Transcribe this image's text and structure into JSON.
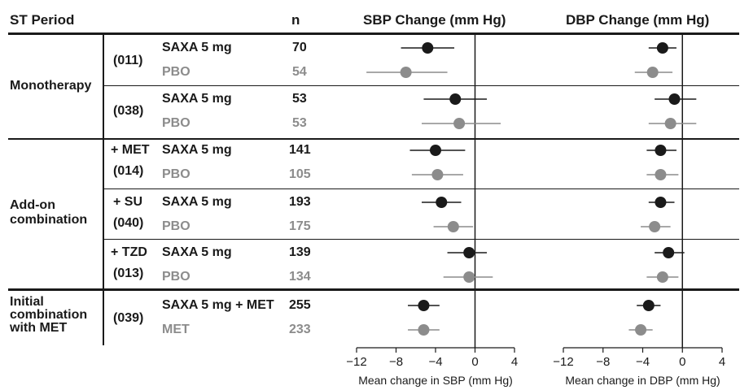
{
  "headers": {
    "period": "ST Period",
    "n": "n",
    "sbp_title": "SBP Change (mm Hg)",
    "dbp_title": "DBP Change (mm Hg)"
  },
  "groups": {
    "monotherapy": "Monotherapy",
    "addon": "Add-on combination",
    "initial": "Initial combination with MET"
  },
  "studies": [
    {
      "id": "(011)",
      "extra": "",
      "treat": "SAXA 5 mg",
      "comp": "PBO",
      "n_treat": "70",
      "n_comp": "54"
    },
    {
      "id": "(038)",
      "extra": "",
      "treat": "SAXA 5 mg",
      "comp": "PBO",
      "n_treat": "53",
      "n_comp": "53"
    },
    {
      "id": "(014)",
      "extra": "+ MET",
      "treat": "SAXA 5 mg",
      "comp": "PBO",
      "n_treat": "141",
      "n_comp": "105"
    },
    {
      "id": "(040)",
      "extra": "+ SU",
      "treat": "SAXA 5 mg",
      "comp": "PBO",
      "n_treat": "193",
      "n_comp": "175"
    },
    {
      "id": "(013)",
      "extra": "+ TZD",
      "treat": "SAXA 5 mg",
      "comp": "PBO",
      "n_treat": "139",
      "n_comp": "134"
    },
    {
      "id": "(039)",
      "extra": "",
      "treat": "SAXA 5 mg + MET",
      "comp": "MET",
      "n_treat": "255",
      "n_comp": "233"
    }
  ],
  "colors": {
    "treatment": "#1a1a1a",
    "comparator": "#8c8c8c"
  },
  "chart_data": [
    {
      "type": "scatter",
      "title": "SBP Change (mm Hg)",
      "xlabel": "Mean change in SBP (mm Hg)",
      "xlim": [
        -12,
        4
      ],
      "xticks": [
        -12,
        -8,
        -4,
        0,
        4
      ],
      "tick_labels": [
        "−12",
        "−8",
        "−4",
        "0",
        "4"
      ],
      "reference_line": 0,
      "points": [
        {
          "study": "(011)",
          "arm": "SAXA 5 mg",
          "mean": -4.8,
          "lo": -7.5,
          "hi": -2.1
        },
        {
          "study": "(011)",
          "arm": "PBO",
          "mean": -7.0,
          "lo": -11.0,
          "hi": -2.8
        },
        {
          "study": "(038)",
          "arm": "SAXA 5 mg",
          "mean": -2.0,
          "lo": -5.2,
          "hi": 1.2
        },
        {
          "study": "(038)",
          "arm": "PBO",
          "mean": -1.6,
          "lo": -5.4,
          "hi": 2.6
        },
        {
          "study": "(014)",
          "arm": "SAXA 5 mg",
          "mean": -4.0,
          "lo": -6.6,
          "hi": -1.0
        },
        {
          "study": "(014)",
          "arm": "PBO",
          "mean": -3.8,
          "lo": -6.4,
          "hi": -1.2
        },
        {
          "study": "(040)",
          "arm": "SAXA 5 mg",
          "mean": -3.4,
          "lo": -5.4,
          "hi": -1.4
        },
        {
          "study": "(040)",
          "arm": "PBO",
          "mean": -2.2,
          "lo": -4.2,
          "hi": -0.2
        },
        {
          "study": "(013)",
          "arm": "SAXA 5 mg",
          "mean": -0.6,
          "lo": -2.8,
          "hi": 1.2
        },
        {
          "study": "(013)",
          "arm": "PBO",
          "mean": -0.6,
          "lo": -3.2,
          "hi": 1.8
        },
        {
          "study": "(039)",
          "arm": "SAXA 5 mg + MET",
          "mean": -5.2,
          "lo": -6.8,
          "hi": -3.6
        },
        {
          "study": "(039)",
          "arm": "MET",
          "mean": -5.2,
          "lo": -6.8,
          "hi": -3.6
        }
      ]
    },
    {
      "type": "scatter",
      "title": "DBP Change (mm Hg)",
      "xlabel": "Mean change in DBP (mm Hg)",
      "xlim": [
        -12,
        4
      ],
      "xticks": [
        -12,
        -8,
        -4,
        0,
        4
      ],
      "tick_labels": [
        "−12",
        "−8",
        "−4",
        "0",
        "4"
      ],
      "reference_line": 0,
      "points": [
        {
          "study": "(011)",
          "arm": "SAXA 5 mg",
          "mean": -2.0,
          "lo": -3.4,
          "hi": -0.6
        },
        {
          "study": "(011)",
          "arm": "PBO",
          "mean": -3.0,
          "lo": -4.8,
          "hi": -1.0
        },
        {
          "study": "(038)",
          "arm": "SAXA 5 mg",
          "mean": -0.8,
          "lo": -2.8,
          "hi": 1.4
        },
        {
          "study": "(038)",
          "arm": "PBO",
          "mean": -1.2,
          "lo": -3.4,
          "hi": 1.4
        },
        {
          "study": "(014)",
          "arm": "SAXA 5 mg",
          "mean": -2.2,
          "lo": -3.6,
          "hi": -0.6
        },
        {
          "study": "(014)",
          "arm": "PBO",
          "mean": -2.2,
          "lo": -3.6,
          "hi": -0.4
        },
        {
          "study": "(040)",
          "arm": "SAXA 5 mg",
          "mean": -2.2,
          "lo": -3.4,
          "hi": -0.8
        },
        {
          "study": "(040)",
          "arm": "PBO",
          "mean": -2.8,
          "lo": -4.2,
          "hi": -1.2
        },
        {
          "study": "(013)",
          "arm": "SAXA 5 mg",
          "mean": -1.4,
          "lo": -2.8,
          "hi": 0.2
        },
        {
          "study": "(013)",
          "arm": "PBO",
          "mean": -2.0,
          "lo": -3.6,
          "hi": -0.4
        },
        {
          "study": "(039)",
          "arm": "SAXA 5 mg + MET",
          "mean": -3.4,
          "lo": -4.6,
          "hi": -2.2
        },
        {
          "study": "(039)",
          "arm": "MET",
          "mean": -4.2,
          "lo": -5.4,
          "hi": -3.0
        }
      ]
    }
  ]
}
